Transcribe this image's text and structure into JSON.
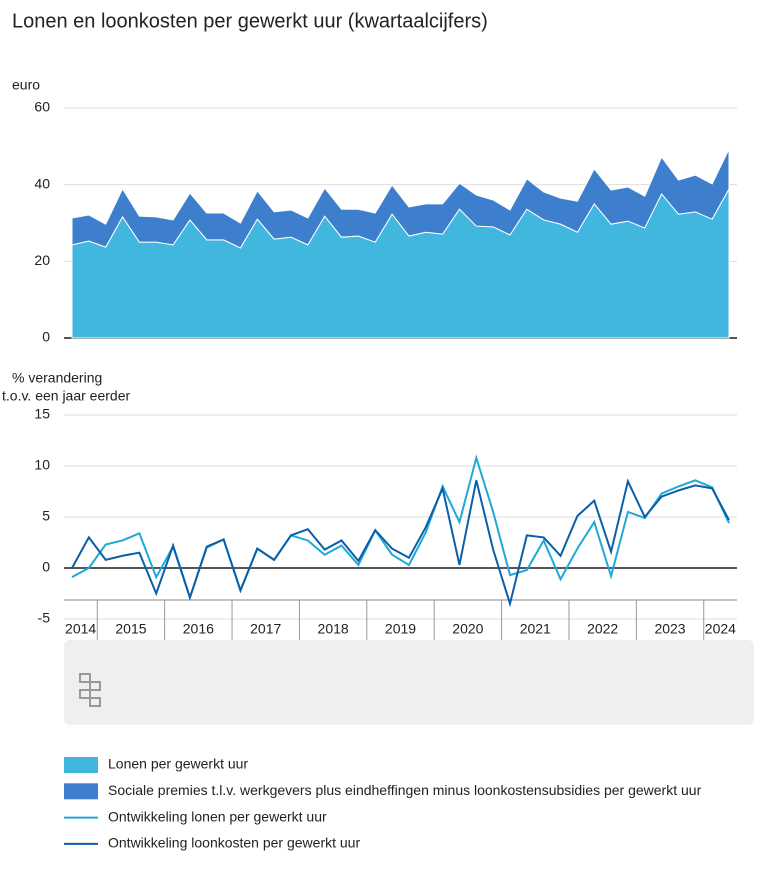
{
  "chart_data": [
    {
      "type": "area",
      "title": "Lonen en loonkosten per gewerkt uur (kwartaalcijfers)",
      "y_label": "euro",
      "ylim": [
        0,
        60
      ],
      "yticks": [
        0,
        20,
        40,
        60
      ],
      "grid": true,
      "stacked": true,
      "series": [
        {
          "name": "Lonen per gewerkt uur",
          "color": "#41b6de",
          "values": [
            24.3,
            25.3,
            23.7,
            31.6,
            25,
            25,
            24.3,
            30.8,
            25.6,
            25.6,
            23.5,
            31,
            25.8,
            26.3,
            24.3,
            31.8,
            26.3,
            26.6,
            25,
            32.3,
            26.6,
            27.6,
            27.1,
            33.6,
            29.2,
            29,
            26.9,
            33.6,
            30.8,
            29.7,
            27.6,
            35,
            29.7,
            30.5,
            28.7,
            37.6,
            32.3,
            32.9,
            31,
            38.9
          ]
        },
        {
          "name": "Sociale premies t.l.v. werkgevers plus eindheffingen minus loonkostensubsidies per gewerkt uur",
          "color": "#3d7fcd",
          "values": [
            7,
            6.8,
            6,
            7.3,
            6.8,
            6.6,
            6.5,
            7,
            7,
            7,
            6.5,
            7.4,
            7.1,
            7.1,
            7,
            7.3,
            7.3,
            7,
            7.6,
            7.6,
            7.6,
            7.4,
            7.9,
            6.8,
            8.1,
            7,
            6.5,
            7.9,
            7.3,
            6.8,
            8.1,
            9.1,
            8.9,
            8.9,
            8.3,
            9.6,
            8.9,
            9.6,
            9.2,
            10.4
          ]
        }
      ]
    },
    {
      "type": "line",
      "y_label": [
        "% verandering",
        "t.o.v. een jaar eerder"
      ],
      "ylim": [
        -5,
        15
      ],
      "yticks": [
        -5,
        0,
        5,
        10,
        15
      ],
      "grid": true,
      "categories": [
        "2014",
        null,
        "2015",
        null,
        null,
        null,
        "2016",
        null,
        null,
        null,
        "2017",
        null,
        null,
        null,
        "2018",
        null,
        null,
        null,
        "2019",
        null,
        null,
        null,
        "2020",
        null,
        null,
        null,
        "2021",
        null,
        null,
        null,
        "2022",
        null,
        null,
        null,
        "2023",
        null,
        null,
        null,
        "2024",
        null
      ],
      "series": [
        {
          "name": "Ontwikkeling lonen per gewerkt uur",
          "color": "#1fa8d8",
          "values": [
            -0.9,
            0,
            2.3,
            2.7,
            3.4,
            -0.9,
            2.1,
            -2.9,
            2.0,
            2.8,
            -2.2,
            1.9,
            0.8,
            3.2,
            2.7,
            1.3,
            2.2,
            0.3,
            3.7,
            1.3,
            0.3,
            3.5,
            8.0,
            4.5,
            10.8,
            5.5,
            -0.7,
            -0.2,
            2.7,
            -1.1,
            1.9,
            4.5,
            -0.8,
            5.5,
            4.9,
            7.3,
            8.0,
            8.6,
            7.9,
            4.4
          ]
        },
        {
          "name": "Ontwikkeling loonkosten per gewerkt uur",
          "color": "#0b5ea8",
          "values": [
            0,
            3.0,
            0.8,
            1.2,
            1.5,
            -2.5,
            2.2,
            -2.9,
            2.1,
            2.8,
            -2.2,
            1.9,
            0.8,
            3.2,
            3.8,
            1.8,
            2.7,
            0.7,
            3.7,
            1.9,
            1.0,
            4.0,
            7.8,
            0.3,
            8.6,
            1.8,
            -3.5,
            3.2,
            3.0,
            1.2,
            5.1,
            6.6,
            1.6,
            8.5,
            5.0,
            7.0,
            7.6,
            8.1,
            7.8,
            4.7
          ]
        }
      ]
    }
  ]
}
